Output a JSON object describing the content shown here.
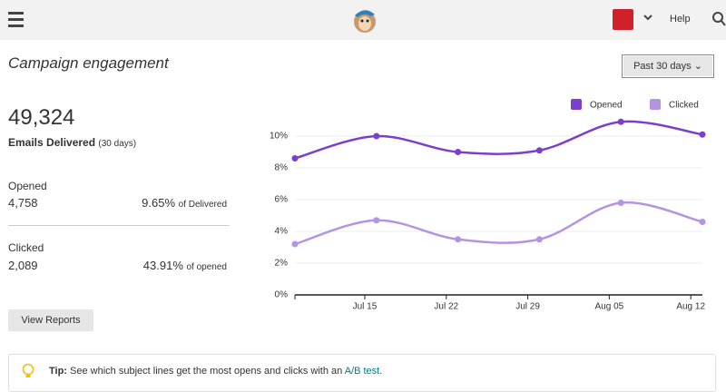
{
  "header": {
    "help": "Help"
  },
  "title": "Campaign engagement",
  "range_button": "Past 30 days",
  "summary": {
    "delivered": {
      "value": "49,324",
      "label": "Emails Delivered",
      "period": "(30 days)"
    },
    "opened": {
      "label": "Opened",
      "value": "4,758",
      "rate": "9.65%",
      "rate_note": "of Delivered"
    },
    "clicked": {
      "label": "Clicked",
      "value": "2,089",
      "rate": "43.91%",
      "rate_note": "of opened"
    }
  },
  "view_button": "View Reports",
  "tip": {
    "prefix": "Tip:",
    "text": "See which subject lines get the most opens and clicks with an",
    "link": "A/B test",
    "suffix": "."
  },
  "chart_data": {
    "type": "line",
    "x": [
      "Jul 09",
      "Jul 16",
      "Jul 23",
      "Jul 30",
      "Aug 06",
      "Aug 13"
    ],
    "xlim": [
      "Jul 09",
      "Aug 13"
    ],
    "xticks": [
      "Jul 15",
      "Jul 22",
      "Jul 29",
      "Aug 05",
      "Aug 12"
    ],
    "ylim": [
      0,
      12
    ],
    "yticks": [
      {
        "value": 0,
        "label": "0%"
      },
      {
        "value": 2,
        "label": "2%"
      },
      {
        "value": 4,
        "label": "4%"
      },
      {
        "value": 6,
        "label": "6%"
      },
      {
        "value": 8,
        "label": "8%"
      },
      {
        "value": 10,
        "label": "10%"
      }
    ],
    "grid": true,
    "legend": "top-right",
    "series": [
      {
        "name": "Opened",
        "color": "#7c3fcc",
        "values": [
          8.6,
          10.0,
          9.0,
          9.1,
          10.9,
          10.1
        ]
      },
      {
        "name": "Clicked",
        "color": "#b593e3",
        "values": [
          3.2,
          4.7,
          3.5,
          3.5,
          5.8,
          4.6
        ]
      }
    ]
  }
}
